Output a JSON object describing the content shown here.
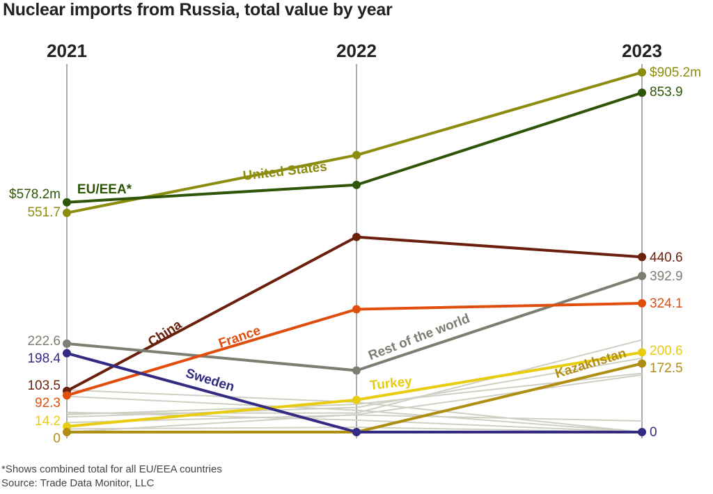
{
  "title": "Nuclear imports from Russia, total value by year",
  "footnote": "*Shows combined total for all EU/EEA countries",
  "source": "Source: Trade Data Monitor, LLC",
  "chart_data": {
    "type": "line",
    "x": [
      "2021",
      "2022",
      "2023"
    ],
    "ylim": [
      0,
      905.2
    ],
    "grid": false,
    "legend": "inline labels",
    "series": [
      {
        "name": "United States",
        "color": "#8c8c0e",
        "values": [
          551.7,
          697,
          905.2
        ],
        "labels": [
          "551.7",
          null,
          "$905.2m"
        ],
        "width": 4
      },
      {
        "name": "EU/EEA*",
        "color": "#2e5508",
        "values": [
          578.2,
          622,
          853.9
        ],
        "labels": [
          "$578.2m",
          null,
          "853.9"
        ],
        "width": 4
      },
      {
        "name": "China",
        "color": "#6b200e",
        "values": [
          103.5,
          491,
          440.6
        ],
        "labels": [
          "103.5",
          null,
          "440.6"
        ],
        "width": 4
      },
      {
        "name": "Rest of the world",
        "color": "#7d7d72",
        "values": [
          222.6,
          155,
          392.9
        ],
        "labels": [
          "222.6",
          null,
          "392.9"
        ],
        "width": 4
      },
      {
        "name": "France",
        "color": "#e04e0e",
        "values": [
          92.3,
          309,
          324.1
        ],
        "labels": [
          "92.3",
          null,
          "324.1"
        ],
        "width": 4
      },
      {
        "name": "Turkey",
        "color": "#e8cc10",
        "values": [
          14.2,
          81,
          200.6
        ],
        "labels": [
          "14.2",
          null,
          "200.6"
        ],
        "width": 4
      },
      {
        "name": "Kazakhstan",
        "color": "#b08e14",
        "values": [
          0,
          0,
          172.5
        ],
        "labels": [
          "0",
          null,
          "172.5"
        ],
        "width": 4
      },
      {
        "name": "Sweden",
        "color": "#332a84",
        "values": [
          198.4,
          0,
          0
        ],
        "labels": [
          "198.4",
          null,
          "0"
        ],
        "width": 4
      }
    ],
    "background_series": [
      {
        "values": [
          106,
          75,
          0
        ]
      },
      {
        "values": [
          48,
          48,
          232
        ]
      },
      {
        "values": [
          44,
          70,
          148
        ]
      },
      {
        "values": [
          38,
          62,
          186
        ]
      },
      {
        "values": [
          24,
          43,
          28
        ]
      },
      {
        "values": [
          50,
          30,
          0
        ]
      },
      {
        "values": [
          8,
          12,
          0
        ]
      },
      {
        "values": [
          0,
          44,
          144
        ]
      },
      {
        "values": [
          90,
          55,
          0
        ]
      }
    ],
    "background_color": "#cfcfc4"
  }
}
